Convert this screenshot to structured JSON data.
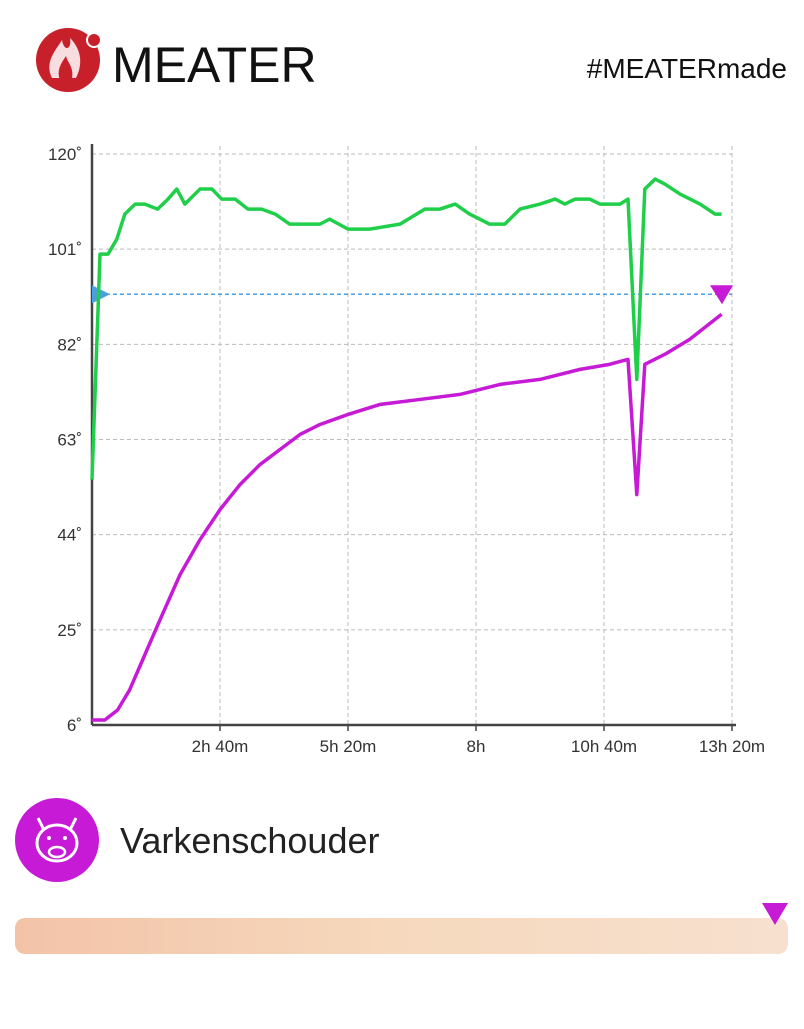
{
  "header": {
    "brand": "MEATER",
    "hashtag": "#MEATERmade"
  },
  "chart_data": {
    "type": "line",
    "xlim": [
      0,
      800
    ],
    "xticks": [
      {
        "value": 160,
        "label": "2h 40m"
      },
      {
        "value": 320,
        "label": "5h 20m"
      },
      {
        "value": 480,
        "label": "8h"
      },
      {
        "value": 640,
        "label": "10h 40m"
      },
      {
        "value": 800,
        "label": "13h 20m"
      }
    ],
    "ylim": [
      6,
      120
    ],
    "yticks": [
      {
        "value": 6,
        "label": "6˚"
      },
      {
        "value": 25,
        "label": "25˚"
      },
      {
        "value": 44,
        "label": "44˚"
      },
      {
        "value": 63,
        "label": "63˚"
      },
      {
        "value": 82,
        "label": "82˚"
      },
      {
        "value": 101,
        "label": "101˚"
      },
      {
        "value": 120,
        "label": "120˚"
      }
    ],
    "grid": true,
    "target": 92,
    "series": [
      {
        "color": "#1fcf4a",
        "x": [
          0,
          10,
          20,
          31,
          41,
          54,
          66,
          82,
          95,
          106,
          116,
          135,
          150,
          162,
          179,
          195,
          212,
          229,
          247,
          272,
          285,
          297,
          320,
          347,
          385,
          416,
          435,
          454,
          472,
          497,
          516,
          535,
          560,
          579,
          591,
          604,
          622,
          635,
          660,
          670,
          681,
          691,
          704,
          716,
          735,
          760,
          779,
          787
        ],
        "values": [
          55,
          100,
          100,
          103,
          108,
          110,
          110,
          109,
          111,
          113,
          110,
          113,
          113,
          111,
          111,
          109,
          109,
          108,
          106,
          106,
          106,
          107,
          105,
          105,
          106,
          109,
          109,
          110,
          108,
          106,
          106,
          109,
          110,
          111,
          110,
          111,
          111,
          110,
          110,
          111,
          75,
          113,
          115,
          114,
          112,
          110,
          108,
          108
        ]
      },
      {
        "color": "#c61ad6",
        "x": [
          0,
          16,
          32,
          47,
          66,
          85,
          110,
          135,
          160,
          185,
          210,
          235,
          260,
          285,
          320,
          360,
          410,
          460,
          510,
          560,
          610,
          647,
          670,
          681,
          691,
          716,
          747,
          787
        ],
        "values": [
          7,
          7,
          9,
          13,
          20,
          27,
          36,
          43,
          49,
          54,
          58,
          61,
          64,
          66,
          68,
          70,
          71,
          72,
          74,
          75,
          77,
          78,
          79,
          52,
          78,
          80,
          83,
          88
        ]
      }
    ]
  },
  "cook": {
    "name": "Varkenschouder"
  }
}
